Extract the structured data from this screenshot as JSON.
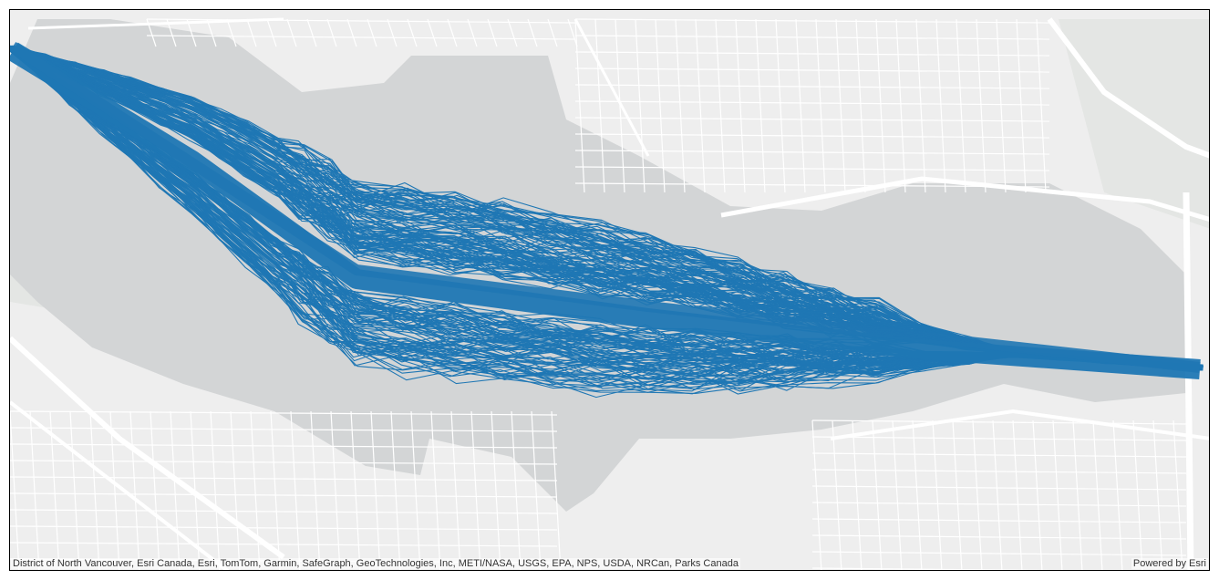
{
  "map": {
    "attribution": "District of North Vancouver, Esri Canada, Esri, TomTom, Garmin, SafeGraph, GeoTechnologies, Inc, METI/NASA, USGS, EPA, NPS, USDA, NRCan, Parks Canada",
    "powered_by": "Powered by Esri"
  }
}
